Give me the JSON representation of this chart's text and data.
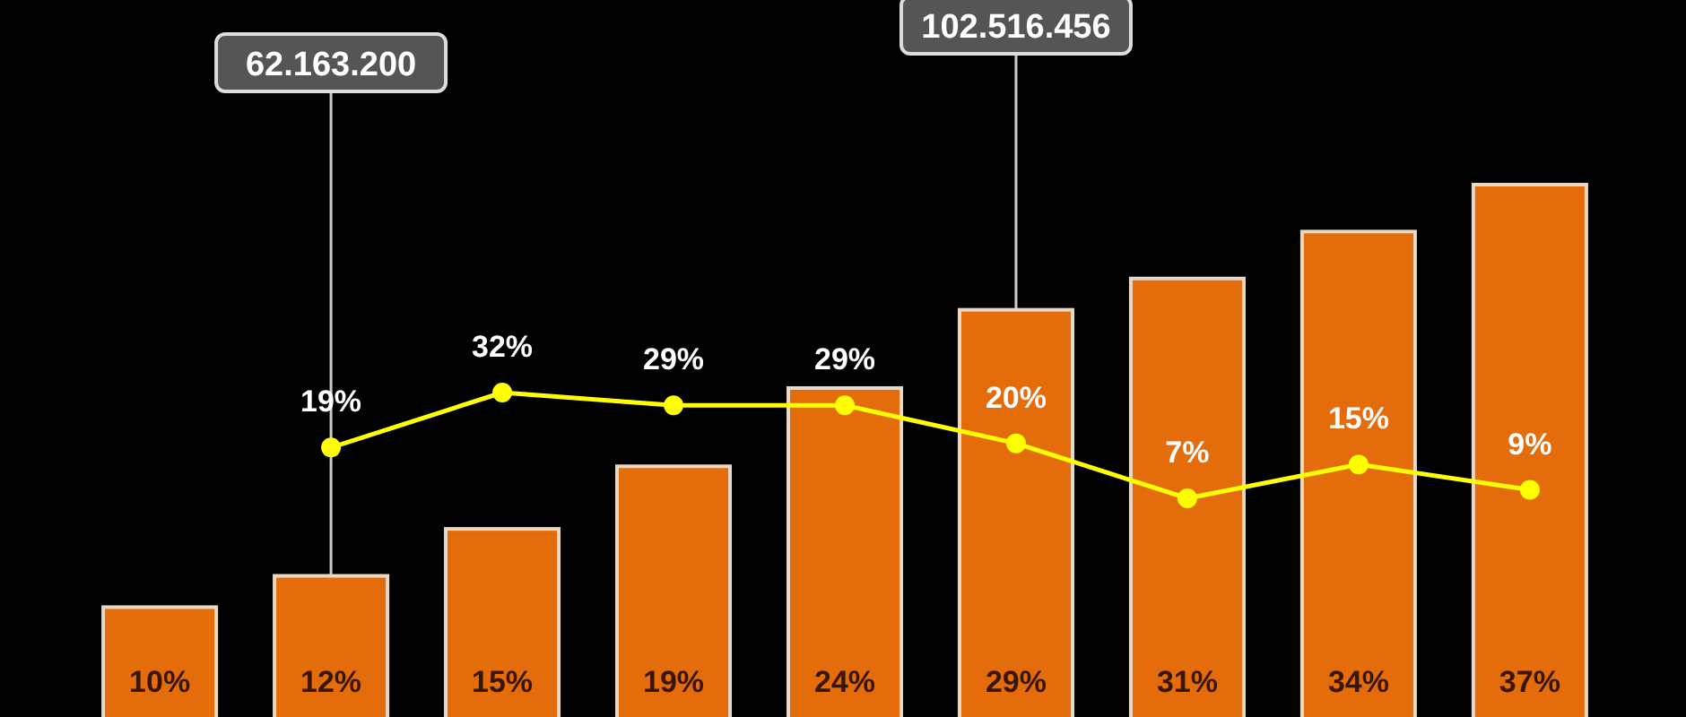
{
  "chart_data": [
    {
      "type": "bar",
      "categories": [
        null,
        null,
        null,
        null,
        null,
        null,
        null,
        null,
        null
      ],
      "color": "#e46c0a",
      "values": [
        10,
        12,
        15,
        19,
        24,
        29,
        31,
        34,
        37
      ],
      "value_labels": [
        "10%",
        "12%",
        "15%",
        "19%",
        "24%",
        "29%",
        "31%",
        "34%",
        "37%"
      ],
      "annotations": [
        "62.163.200",
        "102.516.456"
      ]
    },
    {
      "type": "line",
      "categories": [
        null,
        null,
        null,
        null,
        null,
        null,
        null,
        null,
        null
      ],
      "color": "#ffff00",
      "values": [
        null,
        19,
        32,
        29,
        29,
        20,
        7,
        15,
        9
      ],
      "value_labels": [
        null,
        "19%",
        "32%",
        "29%",
        "29%",
        "20%",
        "7%",
        "15%",
        "9%"
      ],
      "marker": "circle"
    }
  ]
}
